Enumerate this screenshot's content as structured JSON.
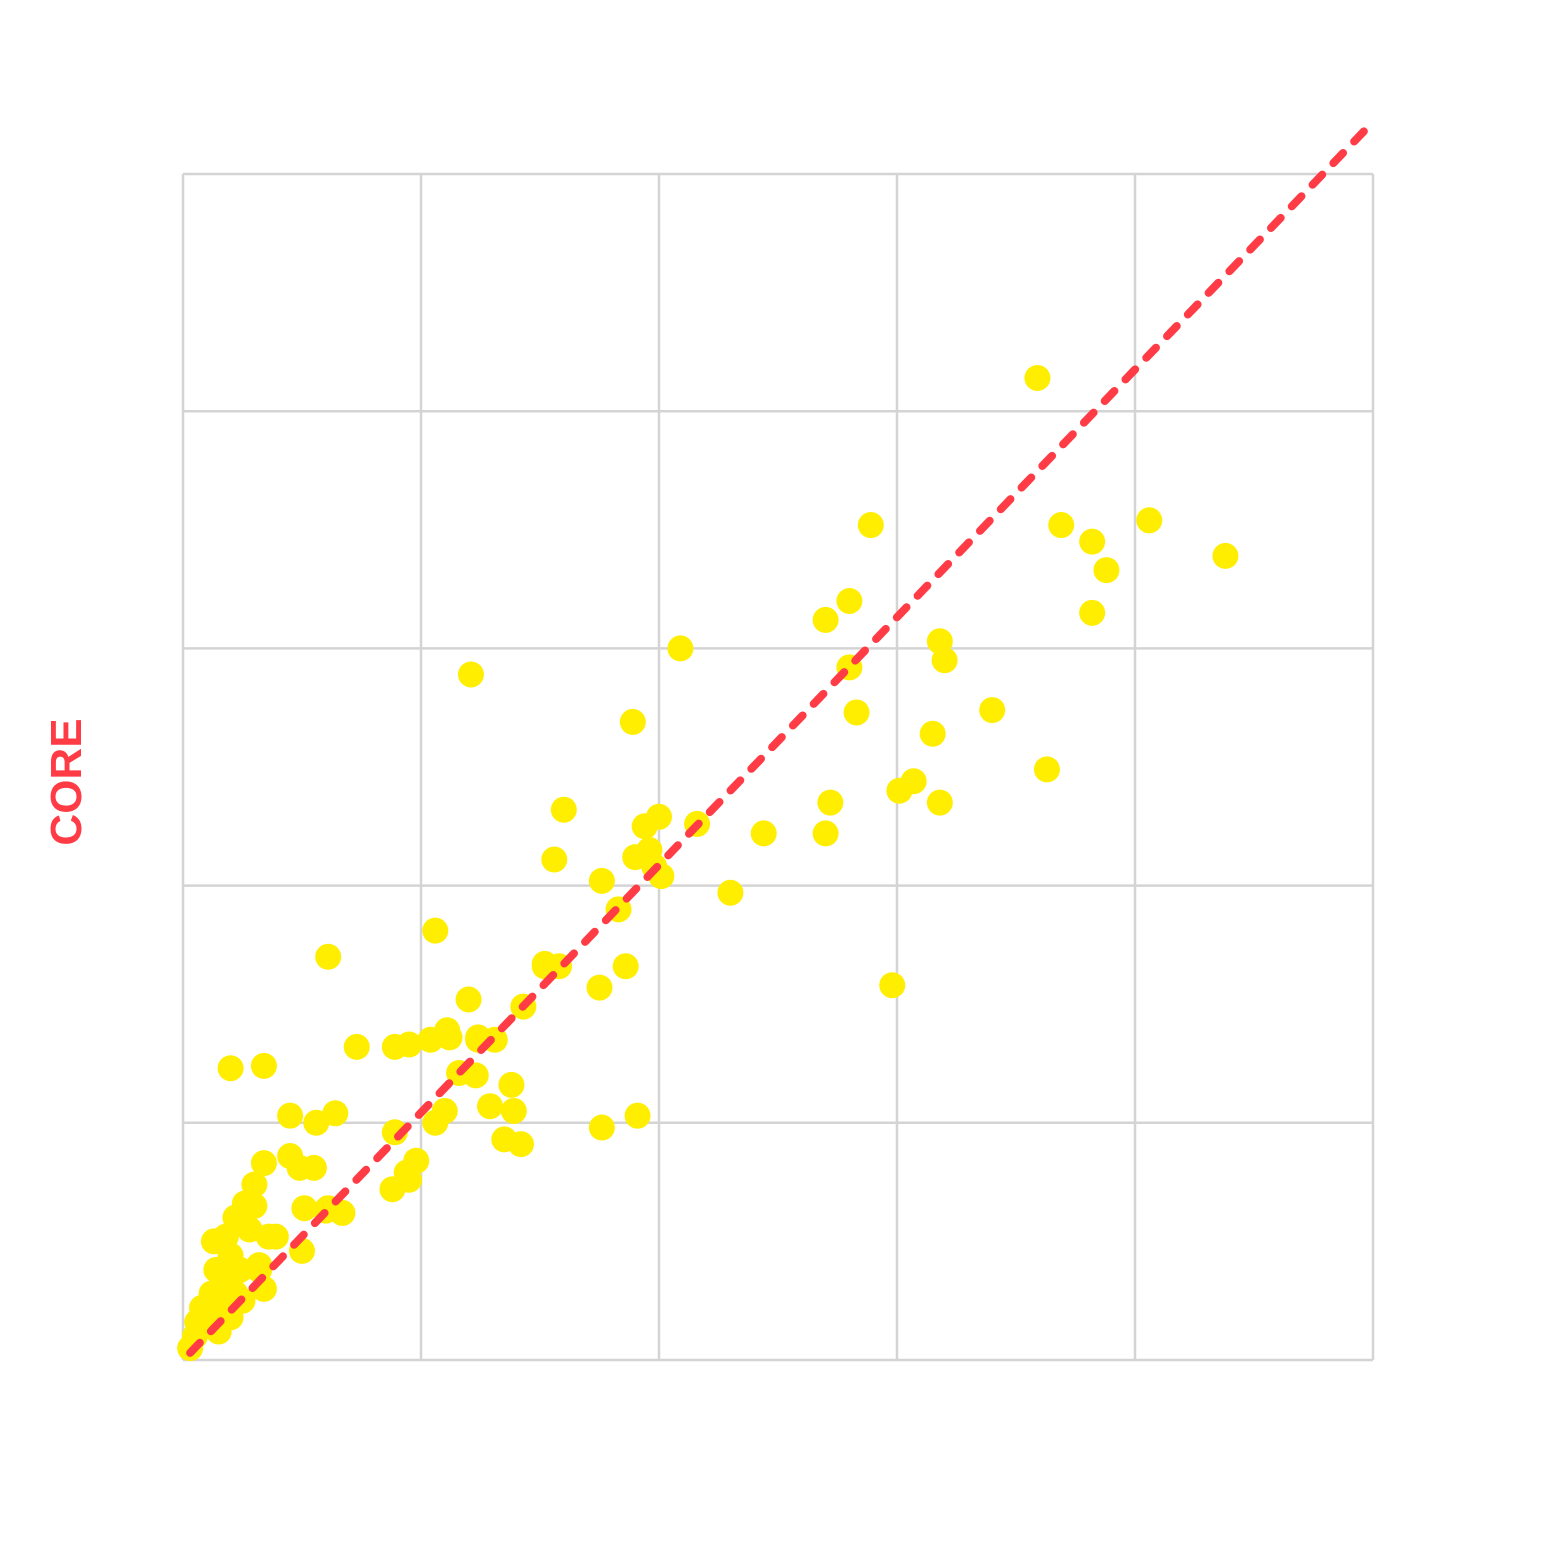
{
  "chart_data": {
    "type": "scatter",
    "title": "",
    "xlabel": "",
    "ylabel": "CORE",
    "xlim": [
      0,
      5
    ],
    "ylim": [
      0,
      5
    ],
    "grid": true,
    "legend": "none",
    "colors": {
      "points": "#ffee00",
      "reference_line": "#ff3c46",
      "ylabel": "#ff3c46",
      "grid": "#d4d4d4"
    },
    "reference_line": {
      "style": "dashed",
      "points": [
        [
          0.03,
          0.03
        ],
        [
          5.0,
          5.22
        ]
      ]
    },
    "series": [
      {
        "values": [
          [
            0.03,
            0.05
          ],
          [
            0.05,
            0.1
          ],
          [
            0.06,
            0.16
          ],
          [
            0.08,
            0.22
          ],
          [
            0.1,
            0.17
          ],
          [
            0.12,
            0.28
          ],
          [
            0.14,
            0.2
          ],
          [
            0.15,
            0.12
          ],
          [
            0.17,
            0.3
          ],
          [
            0.18,
            0.24
          ],
          [
            0.2,
            0.18
          ],
          [
            0.2,
            0.34
          ],
          [
            0.22,
            0.28
          ],
          [
            0.24,
            0.38
          ],
          [
            0.25,
            0.25
          ],
          [
            0.13,
            0.5
          ],
          [
            0.14,
            0.38
          ],
          [
            0.18,
            0.52
          ],
          [
            0.2,
            0.44
          ],
          [
            0.22,
            0.6
          ],
          [
            0.25,
            0.58
          ],
          [
            0.26,
            0.66
          ],
          [
            0.28,
            0.55
          ],
          [
            0.3,
            0.65
          ],
          [
            0.32,
            0.4
          ],
          [
            0.34,
            0.3
          ],
          [
            0.32,
            0.38
          ],
          [
            0.36,
            0.52
          ],
          [
            0.3,
            0.74
          ],
          [
            0.2,
            1.23
          ],
          [
            0.34,
            1.24
          ],
          [
            0.34,
            0.83
          ],
          [
            0.45,
            0.86
          ],
          [
            0.55,
            0.81
          ],
          [
            0.45,
            1.03
          ],
          [
            0.56,
            1.0
          ],
          [
            0.64,
            1.04
          ],
          [
            0.61,
            0.64
          ],
          [
            0.51,
            0.64
          ],
          [
            0.5,
            0.46
          ],
          [
            0.6,
            0.63
          ],
          [
            0.67,
            0.62
          ],
          [
            0.39,
            0.52
          ],
          [
            0.49,
            0.81
          ],
          [
            0.73,
            1.32
          ],
          [
            0.61,
            1.7
          ],
          [
            0.89,
            0.96
          ],
          [
            0.88,
            0.72
          ],
          [
            0.95,
            0.76
          ],
          [
            0.98,
            0.84
          ],
          [
            0.94,
            0.79
          ],
          [
            0.89,
            1.32
          ],
          [
            0.95,
            1.33
          ],
          [
            1.04,
            1.35
          ],
          [
            1.06,
            1.0
          ],
          [
            1.12,
            1.36
          ],
          [
            1.1,
            1.05
          ],
          [
            1.11,
            1.39
          ],
          [
            1.2,
            1.52
          ],
          [
            1.24,
            1.36
          ],
          [
            1.24,
            1.35
          ],
          [
            1.31,
            1.35
          ],
          [
            1.16,
            1.21
          ],
          [
            1.23,
            1.2
          ],
          [
            1.38,
            1.16
          ],
          [
            1.29,
            1.07
          ],
          [
            1.35,
            0.93
          ],
          [
            1.39,
            1.05
          ],
          [
            1.43,
            1.49
          ],
          [
            1.42,
            0.91
          ],
          [
            1.52,
            1.66
          ],
          [
            1.58,
            1.66
          ],
          [
            1.52,
            1.67
          ],
          [
            1.75,
            1.57
          ],
          [
            1.76,
            0.98
          ],
          [
            1.91,
            1.03
          ],
          [
            1.06,
            1.81
          ],
          [
            1.21,
            2.89
          ],
          [
            1.56,
            2.11
          ],
          [
            1.6,
            2.32
          ],
          [
            1.76,
            2.02
          ],
          [
            1.83,
            1.9
          ],
          [
            1.86,
            1.66
          ],
          [
            1.9,
            2.12
          ],
          [
            1.94,
            2.25
          ],
          [
            1.98,
            2.08
          ],
          [
            2.01,
            2.04
          ],
          [
            2.0,
            2.29
          ],
          [
            1.96,
            2.15
          ],
          [
            1.89,
            2.69
          ],
          [
            2.09,
            3.0
          ],
          [
            2.16,
            2.26
          ],
          [
            2.3,
            1.97
          ],
          [
            2.44,
            2.22
          ],
          [
            2.7,
            2.22
          ],
          [
            2.72,
            2.35
          ],
          [
            2.7,
            3.12
          ],
          [
            2.8,
            3.2
          ],
          [
            2.8,
            2.92
          ],
          [
            2.83,
            2.73
          ],
          [
            2.89,
            3.52
          ],
          [
            2.98,
            1.58
          ],
          [
            3.01,
            2.4
          ],
          [
            3.07,
            2.44
          ],
          [
            3.18,
            2.35
          ],
          [
            3.15,
            2.64
          ],
          [
            3.18,
            3.03
          ],
          [
            3.2,
            2.95
          ],
          [
            3.4,
            2.74
          ],
          [
            3.63,
            2.49
          ],
          [
            3.59,
            4.14
          ],
          [
            3.69,
            3.52
          ],
          [
            3.82,
            3.45
          ],
          [
            3.88,
            3.33
          ],
          [
            3.82,
            3.15
          ],
          [
            4.06,
            3.54
          ],
          [
            4.38,
            3.39
          ]
        ]
      }
    ]
  }
}
